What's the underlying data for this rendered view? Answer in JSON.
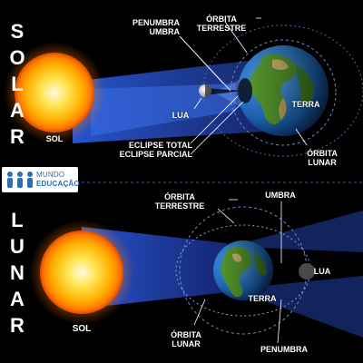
{
  "solar": {
    "side_title": "SOLAR",
    "labels": {
      "sol": "SOL",
      "lua": "LUA",
      "terra": "TERRA",
      "penumbra_umbra": "PENUMBRA\nUMBRA",
      "orbita_terrestre": "ÓRBITA\nTERRESTRE",
      "orbita_lunar": "ÓRBITA\nLUNAR",
      "eclipse_types": "ECLIPSE TOTAL\nECLIPSE PARCIAL"
    }
  },
  "lunar": {
    "side_title": "LUNAR",
    "labels": {
      "sol": "SOL",
      "terra": "TERRA",
      "lua": "LUA",
      "orbita_terrestre": "ÓRBITA\nTERRESTRE",
      "umbra": "UMBRA",
      "orbita_lunar": "ÓRBITA\nLUNAR",
      "penumbra": "PENUMBRA"
    }
  },
  "logo": {
    "top_text": "MUNDO",
    "bottom_text": "EDUCAÇÃO",
    "color": "#2a6fb0"
  },
  "colors": {
    "background": "#000000",
    "sun": "#ffcc00",
    "orbit": "#6a8cc8",
    "beam": "#1e40b8"
  }
}
